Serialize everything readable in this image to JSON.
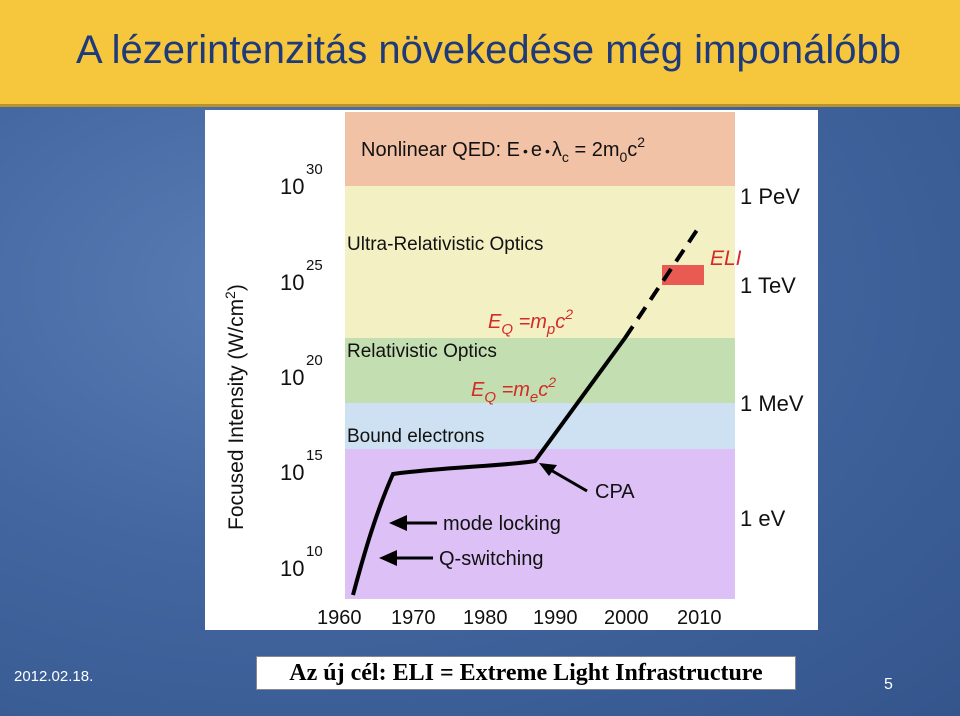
{
  "slide": {
    "title": "A lézerintenzitás növekedése még imponálóbb",
    "date": "2012.02.18.",
    "caption": "Az új cél: ELI = Extreme Light Infrastructure",
    "page_number": "5"
  },
  "colors": {
    "title_bar": "#f6c63d",
    "title_text": "#1f3a7a",
    "band_nonlinear_qed": "#f2c2a6",
    "band_ultra_relativistic": "#f3f0c4",
    "band_relativistic": "#c3deb0",
    "band_bound_electrons": "#cde1f2",
    "band_low": "#dcc0f6",
    "eli_marker": "#e85a52",
    "eli_text": "#d42a2a"
  },
  "figure": {
    "y_axis_label": "Focused Intensity (W/cm",
    "y_axis_label_sup": "2",
    "y_axis_label_end": ")",
    "y_ticks": [
      {
        "base": "10",
        "exp": "30"
      },
      {
        "base": "10",
        "exp": "25"
      },
      {
        "base": "10",
        "exp": "20"
      },
      {
        "base": "10",
        "exp": "15"
      },
      {
        "base": "10",
        "exp": "10"
      }
    ],
    "x_ticks": [
      "1960",
      "1970",
      "1980",
      "1990",
      "2000",
      "2010"
    ],
    "energy_labels": [
      "1 PeV",
      "1 TeV",
      "1 MeV",
      "1 eV"
    ],
    "bands": {
      "nonlinear_qed": {
        "pre": "Nonlinear QED: E",
        "mid": "e",
        "lambda": "λ",
        "lambda_sub": "c",
        "eq": " = 2m",
        "m_sub": "0",
        "c": "c",
        "c_sup": "2"
      },
      "ultra_relativistic": "Ultra-Relativistic Optics",
      "relativistic": "Relativistic Optics",
      "bound_electrons": "Bound electrons"
    },
    "eq_proton": {
      "E": "E",
      "sub": "Q",
      "mid": " =m",
      "msub": "p",
      "c": "c",
      "sup": "2"
    },
    "eq_electron": {
      "E": "E",
      "sub": "Q",
      "mid": " =m",
      "msub": "e",
      "c": "c",
      "sup": "2"
    },
    "eli_label": "ELI",
    "annotations": {
      "cpa": "CPA",
      "mode_locking": "mode locking",
      "q_switching": "Q-switching"
    }
  }
}
